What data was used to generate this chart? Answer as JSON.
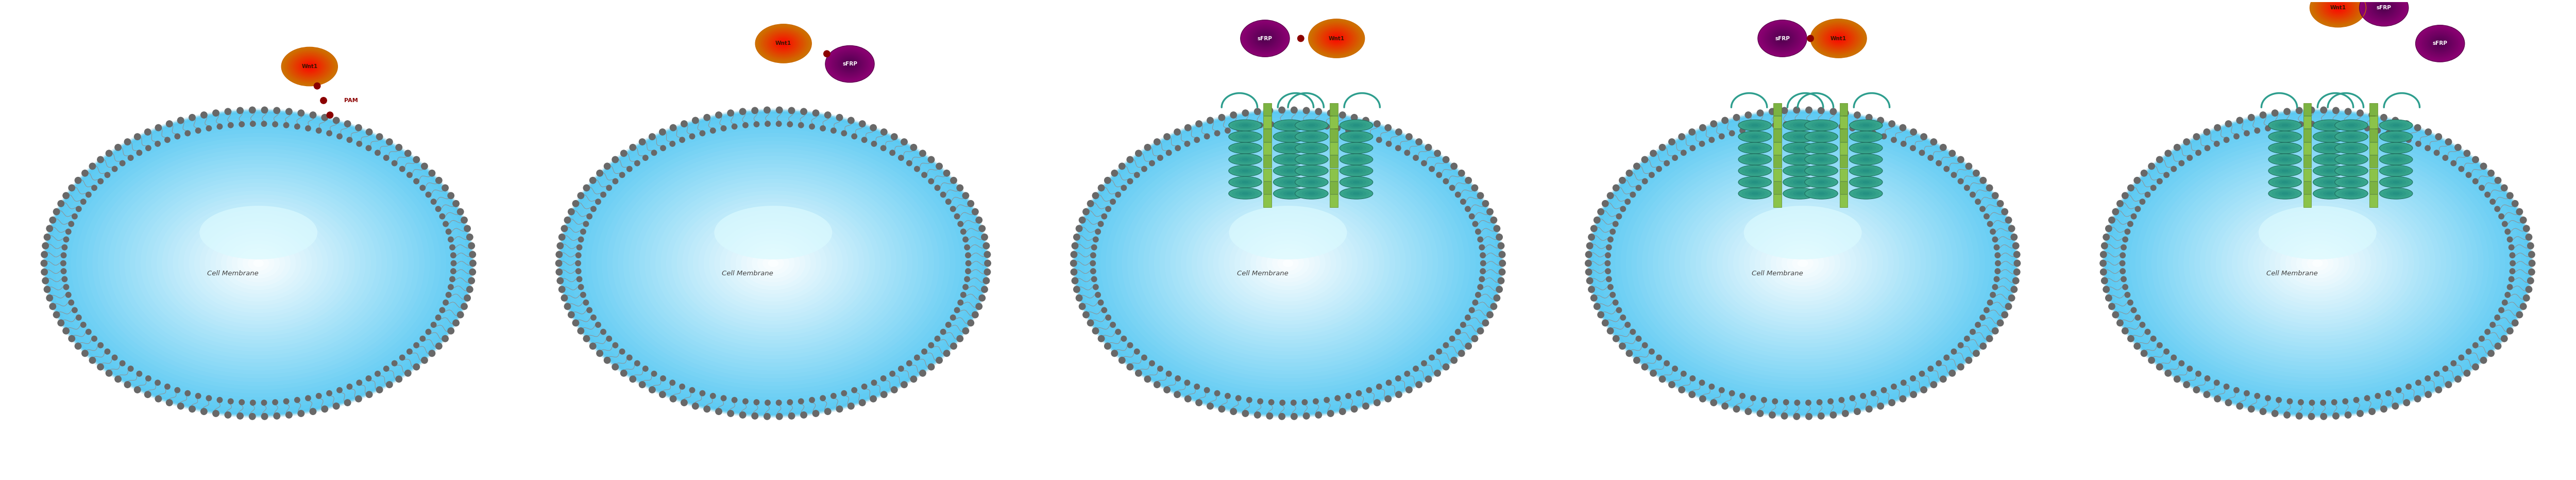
{
  "panels": 5,
  "fig_width": 50.0,
  "fig_height": 9.31,
  "bg_color": "#ffffff",
  "cell_fill_edge": "#5BC8E8",
  "cell_fill_mid": "#7DD9F0",
  "cell_fill_center": "#EAFAFF",
  "membrane_head_color": "#707070",
  "membrane_tail_color": "#909090",
  "wnt1_label": "Wnt1",
  "sfrp_label": "sFRP",
  "pam_label": "PAM",
  "cell_label": "Cell Membrane",
  "frizzled_stem_color1": "#8BC34A",
  "frizzled_stem_color2": "#CDDC39",
  "frizzled_helix_color": "#2E9E8E",
  "pam_dot_color": "#8B0000"
}
